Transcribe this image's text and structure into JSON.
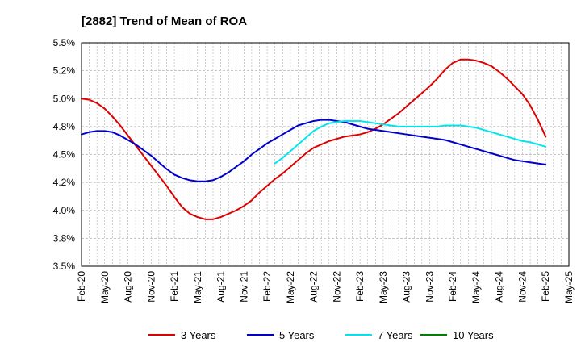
{
  "chart_data": {
    "type": "line",
    "title": "[2882]  Trend of Mean of ROA",
    "xlabel": "",
    "ylabel": "",
    "y_ticks": [
      "5.5%",
      "5.2%",
      "5.0%",
      "4.8%",
      "4.5%",
      "4.2%",
      "4.0%",
      "3.8%",
      "3.5%"
    ],
    "ylim": [
      3.5,
      5.5
    ],
    "x_ticks": [
      "Feb-20",
      "May-20",
      "Aug-20",
      "Nov-20",
      "Feb-21",
      "May-21",
      "Aug-21",
      "Nov-21",
      "Feb-22",
      "May-22",
      "Aug-22",
      "Nov-22",
      "Feb-23",
      "May-23",
      "Aug-23",
      "Nov-23",
      "Feb-24",
      "May-24",
      "Aug-24",
      "Nov-24",
      "Feb-25",
      "May-25"
    ],
    "x_range_months": [
      0,
      63
    ],
    "grid": true,
    "legend_position": "bottom",
    "series": [
      {
        "name": "3 Years",
        "color": "#dd0000",
        "x": [
          0,
          1,
          2,
          3,
          4,
          5,
          6,
          7,
          8,
          9,
          10,
          11,
          12,
          13,
          14,
          15,
          16,
          17,
          18,
          19,
          20,
          21,
          22,
          23,
          24,
          25,
          26,
          27,
          28,
          29,
          30,
          31,
          32,
          33,
          34,
          35,
          36,
          37,
          38,
          39,
          40,
          41,
          42,
          43,
          44,
          45,
          46,
          47,
          48,
          49,
          50,
          51,
          52,
          53,
          54,
          55,
          56,
          57,
          58,
          59,
          60
        ],
        "values": [
          5.0,
          4.99,
          4.96,
          4.91,
          4.84,
          4.76,
          4.67,
          4.58,
          4.49,
          4.4,
          4.31,
          4.22,
          4.12,
          4.03,
          3.97,
          3.94,
          3.92,
          3.92,
          3.94,
          3.97,
          4.0,
          4.04,
          4.09,
          4.16,
          4.22,
          4.28,
          4.33,
          4.39,
          4.45,
          4.51,
          4.56,
          4.59,
          4.62,
          4.64,
          4.66,
          4.67,
          4.68,
          4.7,
          4.73,
          4.77,
          4.82,
          4.87,
          4.93,
          4.99,
          5.05,
          5.11,
          5.18,
          5.26,
          5.32,
          5.35,
          5.35,
          5.34,
          5.32,
          5.29,
          5.24,
          5.18,
          5.11,
          5.04,
          4.94,
          4.81,
          4.66
        ]
      },
      {
        "name": "5 Years",
        "color": "#0000cc",
        "x": [
          0,
          1,
          2,
          3,
          4,
          5,
          6,
          7,
          8,
          9,
          10,
          11,
          12,
          13,
          14,
          15,
          16,
          17,
          18,
          19,
          20,
          21,
          22,
          23,
          24,
          25,
          26,
          27,
          28,
          29,
          30,
          31,
          32,
          33,
          34,
          35,
          36,
          37,
          38,
          39,
          40,
          41,
          42,
          43,
          44,
          45,
          46,
          47,
          48,
          49,
          50,
          51,
          52,
          53,
          54,
          55,
          56,
          57,
          58,
          59,
          60
        ],
        "values": [
          4.68,
          4.7,
          4.71,
          4.71,
          4.7,
          4.67,
          4.63,
          4.59,
          4.54,
          4.49,
          4.43,
          4.37,
          4.32,
          4.29,
          4.27,
          4.26,
          4.26,
          4.27,
          4.3,
          4.34,
          4.39,
          4.44,
          4.5,
          4.55,
          4.6,
          4.64,
          4.68,
          4.72,
          4.76,
          4.78,
          4.8,
          4.81,
          4.81,
          4.8,
          4.79,
          4.77,
          4.75,
          4.73,
          4.72,
          4.71,
          4.7,
          4.69,
          4.68,
          4.67,
          4.66,
          4.65,
          4.64,
          4.63,
          4.61,
          4.59,
          4.57,
          4.55,
          4.53,
          4.51,
          4.49,
          4.47,
          4.45,
          4.44,
          4.43,
          4.42,
          4.41
        ]
      },
      {
        "name": "7 Years",
        "color": "#00e5ee",
        "x": [
          25,
          26,
          27,
          28,
          29,
          30,
          31,
          32,
          33,
          34,
          35,
          36,
          37,
          38,
          39,
          40,
          41,
          42,
          43,
          44,
          45,
          46,
          47,
          48,
          49,
          50,
          51,
          52,
          53,
          54,
          55,
          56,
          57,
          58,
          59,
          60
        ],
        "values": [
          4.42,
          4.47,
          4.53,
          4.59,
          4.65,
          4.71,
          4.75,
          4.78,
          4.79,
          4.8,
          4.8,
          4.8,
          4.79,
          4.78,
          4.77,
          4.76,
          4.75,
          4.75,
          4.75,
          4.75,
          4.75,
          4.75,
          4.76,
          4.76,
          4.76,
          4.75,
          4.74,
          4.72,
          4.7,
          4.68,
          4.66,
          4.64,
          4.62,
          4.61,
          4.59,
          4.57
        ]
      },
      {
        "name": "10 Years",
        "color": "#008000",
        "x": [],
        "values": []
      }
    ]
  }
}
